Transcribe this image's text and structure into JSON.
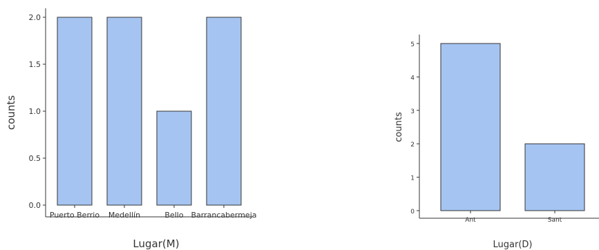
{
  "colors": {
    "bar_fill": "#a6c4f1",
    "bar_stroke": "#333333",
    "axis": "#333333"
  },
  "chart_data": [
    {
      "type": "bar",
      "categories": [
        "Puerto Berrio",
        "Medellín",
        "Bello",
        "Barrancabermeja"
      ],
      "values": [
        2,
        2,
        1,
        2
      ],
      "xlabel": "Lugar(M)",
      "ylabel": "counts",
      "ylim": [
        0,
        2.0
      ],
      "yticks": [
        "0.0",
        "0.5",
        "1.0",
        "1.5",
        "2.0"
      ],
      "grid": false
    },
    {
      "type": "bar",
      "categories": [
        "Ant",
        "Sant"
      ],
      "values": [
        5,
        2
      ],
      "xlabel": "Lugar(D)",
      "ylabel": "counts",
      "ylim": [
        0,
        5
      ],
      "yticks": [
        "0",
        "1",
        "2",
        "3",
        "4",
        "5"
      ],
      "grid": false
    }
  ]
}
